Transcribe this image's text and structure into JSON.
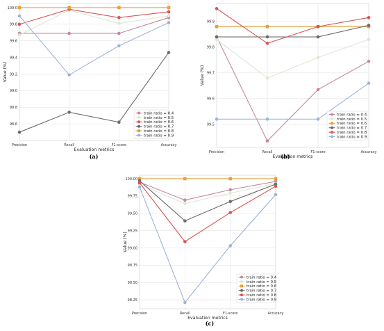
{
  "chart_data": [
    {
      "type": "line",
      "caption": "(a)",
      "xlabel": "Evaluation metrics",
      "ylabel": "Value (%)",
      "categories": [
        "Precision",
        "Recall",
        "F1-score",
        "Accuracy"
      ],
      "ylim": [
        98.4,
        100.05
      ],
      "yticks": [
        "98.6",
        "98.8",
        "99.0",
        "99.2",
        "99.4",
        "99.6",
        "99.8",
        "100.0"
      ],
      "grid": true,
      "legend_position": "bottom-right",
      "series": [
        {
          "name": "train ratio = 0.4",
          "color": "#c4879c",
          "values": [
            99.69,
            99.69,
            99.69,
            99.88
          ]
        },
        {
          "name": "train ratio = 0.5",
          "color": "#dde8d4",
          "values": [
            99.67,
            99.97,
            99.81,
            99.9
          ]
        },
        {
          "name": "train ratio = 0.6",
          "color": "#d9534f",
          "values": [
            99.8,
            99.98,
            99.88,
            99.95
          ]
        },
        {
          "name": "train ratio = 0.7",
          "color": "#6b6b6b",
          "values": [
            98.5,
            98.74,
            98.62,
            99.46
          ]
        },
        {
          "name": "train ratio = 0.8",
          "color": "#e6a03c",
          "values": [
            100.0,
            100.0,
            100.0,
            100.0
          ]
        },
        {
          "name": "train ratio = 0.9",
          "color": "#9fb3d9",
          "values": [
            99.9,
            99.19,
            99.54,
            99.82
          ]
        }
      ]
    },
    {
      "type": "line",
      "caption": "(b)",
      "xlabel": "Evaluation metrics",
      "ylabel": "Value (%)",
      "categories": [
        "Precision",
        "Recall",
        "F1-score",
        "Accuracy"
      ],
      "ylim": [
        99.41,
        99.97
      ],
      "yticks": [
        "99.5",
        "99.6",
        "99.7",
        "99.8",
        "99.9"
      ],
      "grid": true,
      "legend_position": "bottom-right",
      "series": [
        {
          "name": "train ratio = 0.4",
          "color": "#c4879c",
          "values": [
            99.84,
            99.435,
            99.635,
            99.745
          ]
        },
        {
          "name": "train ratio = 0.5",
          "color": "#dde8d4",
          "values": [
            99.83,
            99.68,
            99.76,
            99.83
          ]
        },
        {
          "name": "train ratio = 0.6",
          "color": "#e6a03c",
          "values": [
            99.88,
            99.88,
            99.88,
            99.88
          ]
        },
        {
          "name": "train ratio = 0.7",
          "color": "#6b6b6b",
          "values": [
            99.84,
            99.84,
            99.84,
            99.885
          ]
        },
        {
          "name": "train ratio = 0.8",
          "color": "#d9534f",
          "values": [
            99.95,
            99.815,
            99.88,
            99.915
          ]
        },
        {
          "name": "train ratio = 0.9",
          "color": "#9fb3d9",
          "values": [
            99.52,
            99.52,
            99.52,
            99.66
          ]
        }
      ]
    },
    {
      "type": "line",
      "caption": "(c)",
      "xlabel": "Evaluation metrics",
      "ylabel": "Value (%)",
      "categories": [
        "Precision",
        "Recall",
        "F1-score",
        "Accuracy"
      ],
      "ylim": [
        98.12,
        100.05
      ],
      "yticks": [
        "98.25",
        "98.50",
        "98.75",
        "99.00",
        "99.25",
        "99.50",
        "99.75",
        "100.00"
      ],
      "grid": true,
      "legend_position": "bottom-right",
      "series": [
        {
          "name": "train ratio = 0.4",
          "color": "#c4879c",
          "values": [
            99.95,
            99.69,
            99.84,
            99.96
          ]
        },
        {
          "name": "train ratio = 0.5",
          "color": "#dde8d4",
          "values": [
            99.92,
            99.64,
            99.79,
            99.93
          ]
        },
        {
          "name": "train ratio = 0.6",
          "color": "#e6a03c",
          "values": [
            100.0,
            100.0,
            100.0,
            100.0
          ]
        },
        {
          "name": "train ratio = 0.7",
          "color": "#6b6b6b",
          "values": [
            99.97,
            99.39,
            99.67,
            99.92
          ]
        },
        {
          "name": "train ratio = 0.8",
          "color": "#d9534f",
          "values": [
            99.94,
            99.09,
            99.51,
            99.89
          ]
        },
        {
          "name": "train ratio = 0.9",
          "color": "#9fb3d9",
          "values": [
            99.88,
            98.21,
            99.03,
            99.77
          ]
        }
      ]
    }
  ]
}
